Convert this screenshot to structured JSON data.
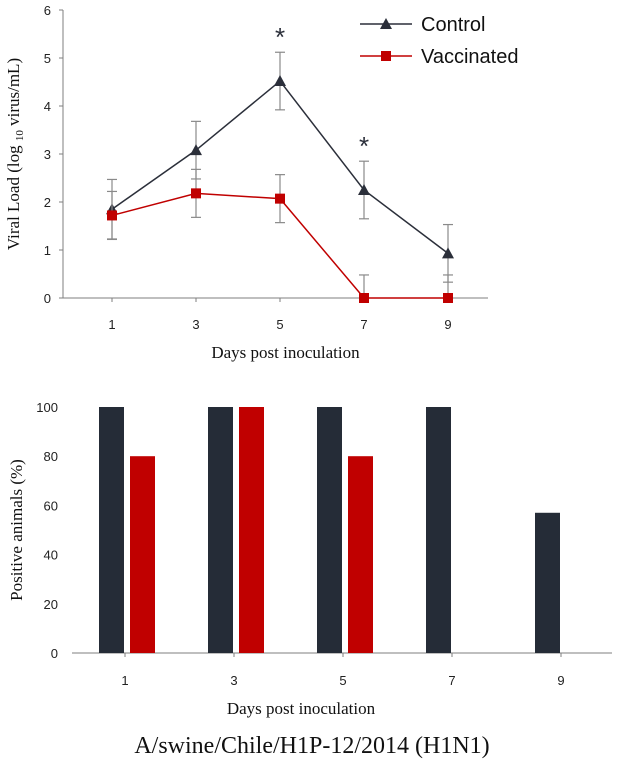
{
  "chart_data": [
    {
      "type": "line",
      "title": "",
      "xlabel": "Days post inoculation",
      "ylabel": "Viral Load (log 10 virus/mL)",
      "ylabel_parts": [
        "Viral Load (log ",
        "10",
        " virus/mL)"
      ],
      "x": [
        1,
        3,
        5,
        7,
        9
      ],
      "ylim": [
        0,
        6
      ],
      "yticks": [
        0,
        1,
        2,
        3,
        4,
        5,
        6
      ],
      "legend_position": "top-right",
      "series": [
        {
          "name": "Control",
          "color": "#2b2f3a",
          "marker": "triangle",
          "values": [
            1.85,
            3.08,
            4.52,
            2.25,
            0.93
          ],
          "errors": [
            0.62,
            0.6,
            0.6,
            0.6,
            0.6
          ]
        },
        {
          "name": "Vaccinated",
          "color": "#c00000",
          "marker": "square",
          "values": [
            1.72,
            2.18,
            2.07,
            0.0,
            0.0
          ],
          "errors": [
            0.5,
            0.5,
            0.5,
            0.48,
            0.48
          ]
        }
      ],
      "annotations": [
        {
          "x": 5,
          "text": "*"
        },
        {
          "x": 7,
          "text": "*"
        }
      ]
    },
    {
      "type": "bar",
      "title": "",
      "xlabel": "Days post inoculation",
      "ylabel": "Positive animals (%)",
      "categories": [
        "1",
        "3",
        "5",
        "7",
        "9"
      ],
      "ylim": [
        0,
        100
      ],
      "yticks": [
        0,
        20,
        40,
        60,
        80,
        100
      ],
      "series": [
        {
          "name": "Control",
          "color": "#252c37",
          "values": [
            100,
            100,
            100,
            100,
            57
          ]
        },
        {
          "name": "Vaccinated",
          "color": "#c00000",
          "values": [
            80,
            100,
            80,
            0,
            0
          ]
        }
      ]
    }
  ],
  "caption": "A/swine/Chile/H1P-12/2014 (H1N1)"
}
